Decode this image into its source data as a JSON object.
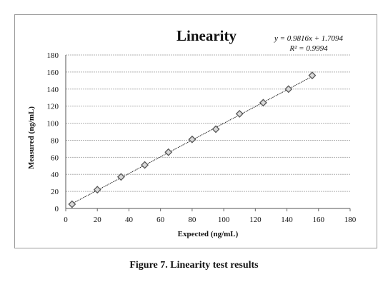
{
  "figure": {
    "caption": "Figure 7. Linearity test results"
  },
  "chart_data": {
    "type": "scatter",
    "title": "Linearity",
    "xlabel": "Expected (ng/mL)",
    "ylabel": "Measured (ng/mL)",
    "xlim": [
      0,
      180
    ],
    "ylim": [
      0,
      180
    ],
    "xticks": [
      0,
      20,
      40,
      60,
      80,
      100,
      120,
      140,
      160,
      180
    ],
    "yticks": [
      0,
      20,
      40,
      60,
      80,
      100,
      120,
      140,
      160,
      180
    ],
    "grid": "horizontal",
    "series": [
      {
        "x": [
          4,
          20,
          35,
          50,
          65,
          80,
          95,
          110,
          125,
          141,
          156
        ],
        "y": [
          5,
          22,
          37,
          51,
          66,
          81,
          93,
          111,
          124,
          140,
          156
        ]
      }
    ],
    "trendline": {
      "slope": 0.9816,
      "intercept": 1.7094,
      "equation": "y = 0.9816x + 1.7094",
      "r2": "R² = 0.9994"
    },
    "colors": {
      "marker": "#555555",
      "line": "#222222",
      "grid": "#b0b0b0"
    }
  }
}
